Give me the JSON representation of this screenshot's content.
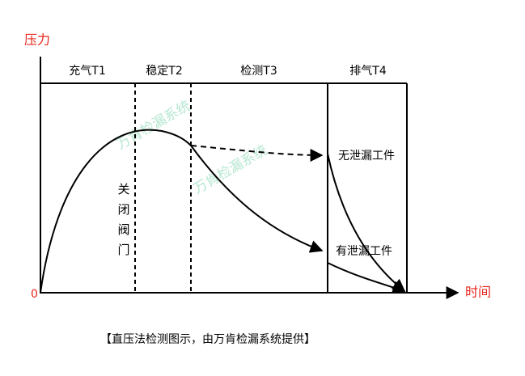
{
  "axis": {
    "y_label": "压力",
    "x_label": "时间",
    "origin": "0"
  },
  "phases": [
    "充气T1",
    "稳定T2",
    "检测T3",
    "排气T4"
  ],
  "valve_label": "关闭阀门",
  "curves": {
    "no_leak": "无泄漏工件",
    "leak": "有泄漏工件"
  },
  "watermark": "万肯检漏系统",
  "caption": "【直压法检测图示，由万肯检漏系统提供】"
}
